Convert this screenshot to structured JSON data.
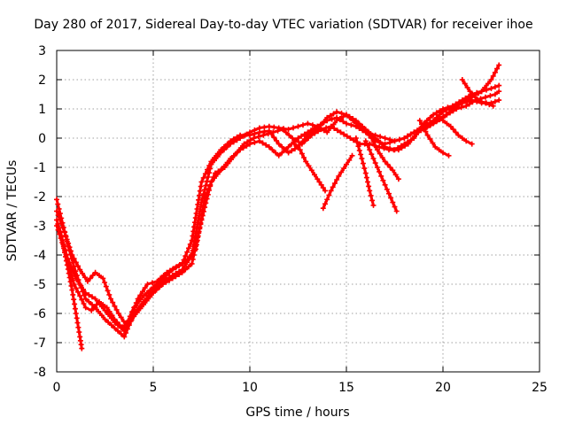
{
  "chart_data": {
    "type": "scatter",
    "title": "Day 280 of 2017, Sidereal Day-to-day VTEC variation (SDTVAR) for receiver ihoe",
    "xlabel": "GPS time / hours",
    "ylabel": "SDTVAR / TECUs",
    "xlim": [
      0,
      25
    ],
    "ylim": [
      -8,
      3
    ],
    "xticks": [
      "0",
      "5",
      "10",
      "15",
      "20",
      "25"
    ],
    "yticks": [
      "-8",
      "-7",
      "-6",
      "-5",
      "-4",
      "-3",
      "-2",
      "-1",
      "0",
      "1",
      "2",
      "3"
    ],
    "grid": true,
    "marker": "plus",
    "color": "#ff0000",
    "series": [
      {
        "name": "s1",
        "x": [
          0,
          0.3,
          0.6,
          0.9,
          1.2,
          1.5,
          2.0,
          2.5,
          3.0,
          3.5,
          4.0,
          4.5,
          5.0,
          5.5,
          6.0,
          6.5,
          7.0,
          7.5,
          8.0,
          8.5,
          9.0,
          9.5,
          10.0,
          10.5,
          11.0,
          11.5,
          12.0,
          12.5,
          13.0,
          13.5,
          14.0,
          14.5,
          15.0,
          15.5,
          16.0,
          16.5,
          17.0,
          17.5,
          18.0,
          18.5,
          19.0,
          19.5,
          20.0,
          20.5,
          21.0,
          21.5,
          22.0,
          22.5,
          22.9
        ],
        "y": [
          -2.1,
          -2.9,
          -3.7,
          -4.4,
          -5.0,
          -5.5,
          -5.8,
          -6.2,
          -6.5,
          -6.8,
          -6.0,
          -5.6,
          -5.2,
          -4.9,
          -4.7,
          -4.5,
          -4.0,
          -2.2,
          -0.9,
          -0.5,
          -0.2,
          0.0,
          0.2,
          0.35,
          0.4,
          0.35,
          0.3,
          0.4,
          0.5,
          0.4,
          0.2,
          0.6,
          0.8,
          0.5,
          0.2,
          -0.1,
          -0.2,
          -0.1,
          0.0,
          0.2,
          0.3,
          0.5,
          0.7,
          1.0,
          1.2,
          1.4,
          1.6,
          2.0,
          2.5
        ]
      },
      {
        "name": "s2",
        "x": [
          0,
          0.4,
          0.8,
          1.2,
          1.6,
          2.0,
          2.4,
          2.8,
          3.2,
          3.6,
          4.0,
          4.5,
          5.0,
          5.5,
          6.0,
          6.5,
          7.0,
          7.5,
          8.0,
          8.5,
          9.0,
          9.5,
          10.0,
          10.5,
          11.0,
          11.5,
          12.0,
          12.5,
          13.0,
          13.5,
          14.0,
          14.5,
          15.0,
          15.5,
          16.0,
          16.5,
          17.0,
          17.5,
          18.0,
          18.5,
          19.0,
          19.5,
          20.0,
          20.5,
          21.0,
          21.5,
          22.0,
          22.5,
          22.9
        ],
        "y": [
          -2.5,
          -3.2,
          -4.0,
          -4.5,
          -4.9,
          -4.6,
          -4.8,
          -5.5,
          -6.0,
          -6.4,
          -5.8,
          -5.4,
          -5.1,
          -4.8,
          -4.5,
          -4.3,
          -3.5,
          -1.5,
          -0.8,
          -0.4,
          -0.1,
          0.1,
          0.1,
          0.2,
          0.25,
          -0.2,
          -0.5,
          -0.3,
          0.1,
          0.3,
          0.7,
          0.9,
          0.8,
          0.6,
          0.3,
          0.0,
          -0.3,
          -0.4,
          -0.2,
          0.0,
          0.5,
          0.8,
          1.0,
          1.1,
          1.2,
          1.3,
          1.2,
          1.2,
          1.3
        ]
      },
      {
        "name": "s3",
        "x": [
          0,
          0.3,
          0.6,
          0.9,
          1.2,
          1.5,
          1.8,
          2.2,
          2.6,
          3.0,
          3.4,
          3.8,
          4.2,
          4.7,
          5.2,
          5.7,
          6.2,
          6.7,
          7.2,
          7.7,
          8.2,
          8.7,
          9.2,
          9.7,
          10.2,
          10.7,
          11.2,
          11.7,
          12.2,
          12.7,
          13.2,
          13.7,
          14.2,
          14.7,
          15.2,
          15.7,
          16.2,
          16.7,
          17.2,
          17.7,
          18.2,
          18.7,
          19.2,
          19.7,
          20.2,
          20.7,
          21.2,
          21.7,
          22.2,
          22.7,
          22.9
        ],
        "y": [
          -2.8,
          -3.5,
          -4.3,
          -5.0,
          -5.4,
          -5.8,
          -5.9,
          -5.6,
          -5.8,
          -6.2,
          -6.5,
          -6.2,
          -5.5,
          -5.0,
          -4.9,
          -4.6,
          -4.4,
          -4.2,
          -3.8,
          -2.0,
          -1.2,
          -1.0,
          -0.6,
          -0.2,
          0.0,
          0.1,
          0.2,
          0.3,
          0.0,
          -0.2,
          0.1,
          0.3,
          0.4,
          0.2,
          0.0,
          -0.2,
          -0.2,
          -0.3,
          -0.4,
          -0.4,
          -0.2,
          0.2,
          0.4,
          0.6,
          0.8,
          1.0,
          1.1,
          1.3,
          1.4,
          1.5,
          1.6
        ]
      },
      {
        "name": "s4",
        "x": [
          0,
          0.5,
          1.0,
          1.5,
          2.0,
          2.5,
          3.0,
          3.5,
          4.0,
          4.5,
          5.0,
          5.5,
          6.0,
          6.5,
          7.0,
          7.5,
          8.0,
          8.5,
          9.0,
          9.5,
          10.0,
          10.5,
          11.0,
          11.5,
          12.0,
          12.5,
          13.0,
          13.5,
          14.0,
          14.5,
          15.0,
          15.5,
          16.0,
          16.5,
          17.0,
          17.5,
          18.0,
          18.5,
          19.0,
          19.5,
          20.0,
          20.5,
          21.0,
          21.5,
          22.0,
          22.5,
          22.9
        ],
        "y": [
          -3.0,
          -4.0,
          -4.8,
          -5.3,
          -5.5,
          -5.9,
          -6.3,
          -6.6,
          -6.1,
          -5.7,
          -5.3,
          -5.0,
          -4.8,
          -4.6,
          -4.3,
          -2.8,
          -1.5,
          -1.1,
          -0.7,
          -0.4,
          -0.2,
          -0.1,
          -0.3,
          -0.6,
          -0.3,
          0.0,
          0.2,
          0.4,
          0.6,
          0.7,
          0.5,
          0.4,
          0.2,
          0.1,
          0.0,
          -0.1,
          0.0,
          0.2,
          0.4,
          0.6,
          0.9,
          1.1,
          1.3,
          1.5,
          1.6,
          1.7,
          1.8
        ]
      },
      {
        "name": "branch1",
        "x": [
          0.2,
          0.5,
          0.8,
          1.0,
          1.2,
          1.3
        ],
        "y": [
          -3.2,
          -4.2,
          -5.2,
          -6.0,
          -6.8,
          -7.2
        ]
      },
      {
        "name": "branch2",
        "x": [
          12.3,
          12.6,
          12.9,
          13.2,
          13.5,
          13.7,
          13.9
        ],
        "y": [
          -0.2,
          -0.4,
          -0.8,
          -1.1,
          -1.4,
          -1.6,
          -1.8
        ]
      },
      {
        "name": "branch3",
        "x": [
          13.8,
          14.2,
          14.6,
          15.0,
          15.3
        ],
        "y": [
          -2.4,
          -1.8,
          -1.3,
          -0.9,
          -0.6
        ]
      },
      {
        "name": "branch4",
        "x": [
          15.5,
          15.8,
          16.0,
          16.2,
          16.4
        ],
        "y": [
          0.0,
          -0.7,
          -1.2,
          -1.8,
          -2.3
        ]
      },
      {
        "name": "branch5",
        "x": [
          16.0,
          16.4,
          16.8,
          17.2,
          17.6
        ],
        "y": [
          -0.1,
          -0.7,
          -1.3,
          -1.9,
          -2.5
        ]
      },
      {
        "name": "branch6",
        "x": [
          16.3,
          16.6,
          17.0,
          17.4,
          17.7
        ],
        "y": [
          0.0,
          -0.4,
          -0.8,
          -1.1,
          -1.4
        ]
      },
      {
        "name": "branch7",
        "x": [
          18.8,
          19.2,
          19.6,
          20.0,
          20.3
        ],
        "y": [
          0.6,
          0.1,
          -0.3,
          -0.5,
          -0.6
        ]
      },
      {
        "name": "branch8",
        "x": [
          20.0,
          20.4,
          20.8,
          21.2,
          21.5
        ],
        "y": [
          0.6,
          0.4,
          0.1,
          -0.1,
          -0.2
        ]
      },
      {
        "name": "branch9",
        "x": [
          21.0,
          21.4,
          21.8,
          22.2,
          22.6
        ],
        "y": [
          2.0,
          1.6,
          1.3,
          1.2,
          1.1
        ]
      }
    ]
  }
}
